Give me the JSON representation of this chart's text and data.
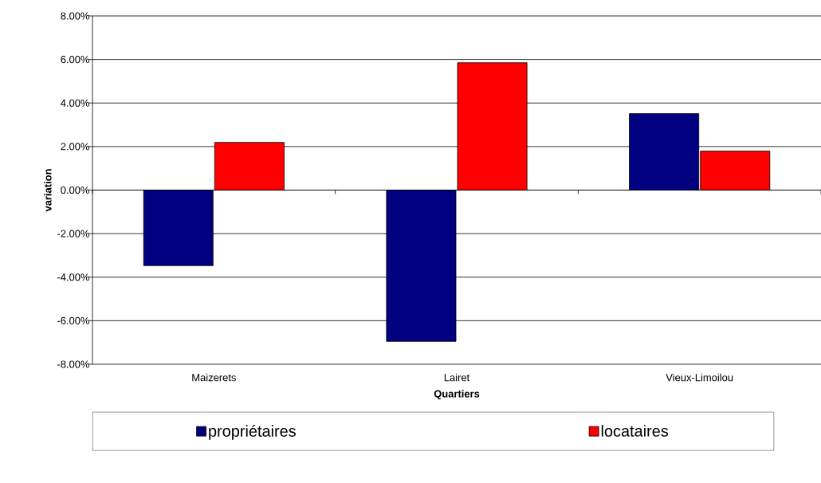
{
  "chart_data": {
    "type": "bar",
    "xlabel": "Quartiers",
    "ylabel": "variation",
    "categories": [
      "Maizerets",
      "Lairet",
      "Vieux-Limoilou"
    ],
    "series": [
      {
        "name": "propriétaires",
        "color": "#000080",
        "values": [
          -3.47,
          -6.95,
          3.51
        ]
      },
      {
        "name": "locataires",
        "color": "#ff0000",
        "values": [
          2.19,
          5.85,
          1.79
        ]
      }
    ],
    "ylim": [
      -8,
      8
    ],
    "yticks": [
      {
        "value": -8,
        "label": "-8.00%"
      },
      {
        "value": -6,
        "label": "-6.00%"
      },
      {
        "value": -4,
        "label": "-4.00%"
      },
      {
        "value": -2,
        "label": "-2.00%"
      },
      {
        "value": 0,
        "label": "0.00%"
      },
      {
        "value": 2,
        "label": "2.00%"
      },
      {
        "value": 4,
        "label": "4.00%"
      },
      {
        "value": 6,
        "label": "6.00%"
      },
      {
        "value": 8,
        "label": "8.00%"
      }
    ],
    "grid": "y",
    "legend": "bottom"
  }
}
